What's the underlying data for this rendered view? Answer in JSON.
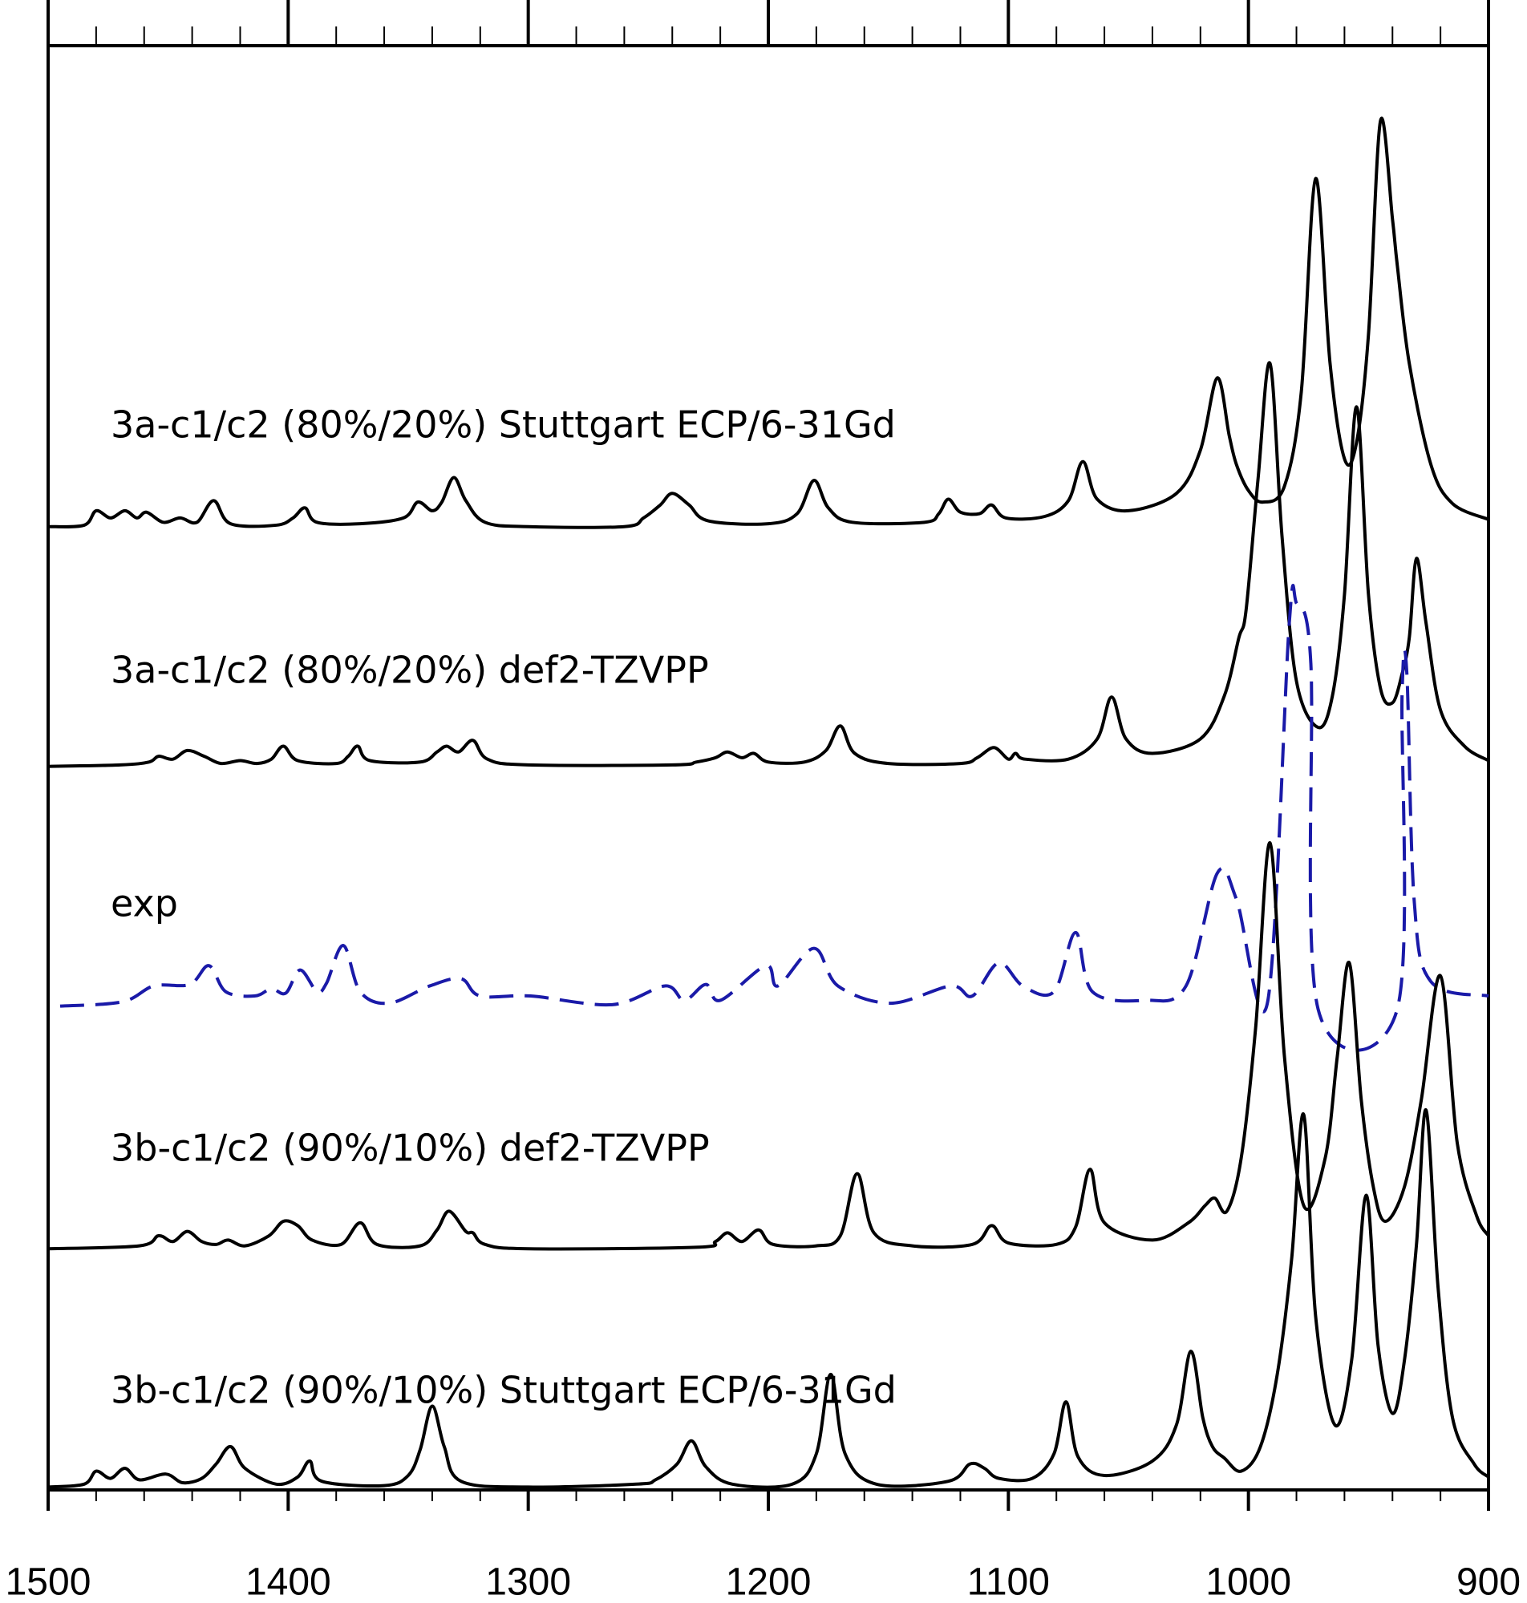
{
  "chart_data": {
    "type": "line",
    "xlim": [
      1500,
      900
    ],
    "ylim": [
      0,
      100
    ],
    "xticks": [
      1500,
      1400,
      1300,
      1200,
      1100,
      1000,
      900
    ],
    "xticks_minor": [
      1480,
      1460,
      1440,
      1420,
      1380,
      1360,
      1340,
      1320,
      1280,
      1260,
      1240,
      1220,
      1180,
      1160,
      1140,
      1120,
      1080,
      1060,
      1040,
      1020,
      980,
      960,
      940,
      920
    ],
    "series": [
      {
        "name": "3a-c1/c2 (80%/20%) Stuttgart ECP/6-31Gd",
        "color": "#000000",
        "line_style": "solid",
        "x": [
          1500,
          1485,
          1480,
          1474,
          1468,
          1463,
          1459,
          1452,
          1445,
          1438,
          1431,
          1424,
          1405,
          1398,
          1393,
          1388,
          1370,
          1352,
          1346,
          1340,
          1336,
          1331,
          1326,
          1318,
          1300,
          1260,
          1252,
          1245,
          1240,
          1233,
          1225,
          1200,
          1188,
          1181,
          1175,
          1165,
          1135,
          1129,
          1125,
          1120,
          1112,
          1107,
          1101,
          1085,
          1075,
          1069,
          1063,
          1050,
          1030,
          1020,
          1013,
          1008,
          1005,
          1000,
          994,
          985,
          978,
          972,
          966,
          960,
          955,
          950,
          945,
          940,
          938,
          933,
          924,
          915,
          900
        ],
        "values": [
          66.7,
          66.8,
          67.8,
          67.3,
          67.8,
          67.3,
          67.7,
          67.0,
          67.3,
          67.0,
          68.5,
          66.9,
          66.8,
          67.3,
          68.0,
          67.0,
          66.9,
          67.3,
          68.4,
          67.8,
          68.4,
          70.1,
          68.5,
          67.0,
          66.7,
          66.7,
          67.3,
          68.2,
          69.0,
          68.2,
          67.1,
          66.9,
          67.6,
          69.9,
          68.0,
          67.0,
          67.0,
          67.6,
          68.6,
          67.7,
          67.6,
          68.2,
          67.3,
          67.4,
          68.5,
          71.2,
          68.6,
          67.8,
          69.0,
          72.0,
          77.0,
          73.0,
          71.0,
          69.2,
          68.4,
          69.5,
          76.0,
          90.8,
          78.0,
          71.4,
          72.5,
          80.0,
          94.8,
          88.0,
          84.8,
          78.0,
          71.0,
          68.3,
          67.2
        ]
      },
      {
        "name": "3a-c1/c2 (80%/20%) def2-TZVPP",
        "color": "#000000",
        "line_style": "solid",
        "x": [
          1500,
          1470,
          1458,
          1454,
          1448,
          1442,
          1435,
          1428,
          1420,
          1413,
          1407,
          1402,
          1396,
          1380,
          1375,
          1371,
          1366,
          1345,
          1338,
          1334,
          1329,
          1323,
          1317,
          1300,
          1240,
          1230,
          1222,
          1217,
          1211,
          1206,
          1200,
          1185,
          1176,
          1170,
          1164,
          1150,
          1120,
          1113,
          1106,
          1100,
          1097,
          1093,
          1075,
          1063,
          1057,
          1051,
          1040,
          1020,
          1010,
          1004,
          1001,
          996,
          991,
          986,
          980,
          971,
          965,
          960,
          955,
          950,
          945,
          940,
          936,
          933,
          930,
          926,
          920,
          910,
          900
        ],
        "values": [
          50.1,
          50.2,
          50.4,
          50.8,
          50.6,
          51.2,
          50.8,
          50.3,
          50.5,
          50.3,
          50.6,
          51.5,
          50.5,
          50.3,
          50.8,
          51.5,
          50.5,
          50.4,
          51.1,
          51.5,
          51.1,
          51.9,
          50.6,
          50.2,
          50.2,
          50.4,
          50.7,
          51.1,
          50.7,
          51.0,
          50.4,
          50.4,
          51.2,
          52.9,
          51.0,
          50.3,
          50.3,
          50.7,
          51.4,
          50.6,
          51.0,
          50.6,
          50.6,
          52.0,
          54.9,
          52.0,
          51.0,
          52.0,
          55.0,
          59.0,
          60.9,
          70.0,
          78.0,
          66.0,
          56.0,
          52.8,
          55.0,
          62.0,
          75.0,
          62.0,
          55.5,
          54.5,
          56.5,
          59.0,
          64.5,
          60.0,
          54.0,
          51.5,
          50.5
        ]
      },
      {
        "name": "exp",
        "color": "#1a1aa8",
        "line_style": "dashed",
        "x": [
          1495,
          1469,
          1456,
          1441,
          1433,
          1426,
          1414,
          1407,
          1401,
          1395,
          1388,
          1384,
          1377,
          1370,
          1358,
          1341,
          1328,
          1320,
          1299,
          1265,
          1243,
          1235,
          1226,
          1220,
          1201,
          1196,
          1181,
          1171,
          1149,
          1124,
          1115,
          1104,
          1094,
          1081,
          1072,
          1065,
          1043,
          1026,
          1013,
          1005,
          992,
          983,
          980,
          974,
          971,
          938,
          936,
          934,
          931,
          924,
          900
        ],
        "values": [
          33.5,
          33.8,
          34.9,
          35.0,
          36.3,
          34.5,
          34.2,
          34.7,
          34.4,
          36.0,
          34.5,
          35.1,
          37.7,
          34.5,
          33.7,
          34.9,
          35.4,
          34.2,
          34.2,
          33.6,
          34.9,
          33.9,
          35.0,
          33.9,
          36.3,
          34.9,
          37.5,
          34.9,
          33.7,
          34.9,
          34.2,
          36.5,
          34.9,
          34.5,
          38.6,
          34.5,
          33.9,
          34.9,
          42.7,
          40.9,
          33.8,
          60.0,
          61.4,
          57.2,
          33.3,
          33.3,
          55.1,
          56.5,
          40.9,
          35.2,
          34.2
        ]
      },
      {
        "name": "3b-c1/c2 (90%/10%) def2-TZVPP",
        "color": "#000000",
        "line_style": "solid",
        "x": [
          1500,
          1462,
          1454,
          1448,
          1442,
          1436,
          1430,
          1425,
          1418,
          1408,
          1402,
          1396,
          1390,
          1378,
          1370,
          1363,
          1345,
          1338,
          1333,
          1326,
          1323,
          1318,
          1300,
          1230,
          1222,
          1217,
          1211,
          1204,
          1198,
          1180,
          1170,
          1163,
          1156,
          1140,
          1115,
          1107,
          1100,
          1080,
          1072,
          1066,
          1060,
          1040,
          1025,
          1018,
          1014,
          1009,
          1003,
          997,
          991,
          985,
          977,
          968,
          963,
          958,
          953,
          948,
          943,
          935,
          928,
          920,
          913,
          905,
          900
        ],
        "values": [
          16.7,
          16.9,
          17.6,
          17.2,
          17.9,
          17.2,
          17.0,
          17.3,
          16.9,
          17.6,
          18.6,
          18.3,
          17.3,
          17.0,
          18.5,
          17.0,
          16.9,
          18.0,
          19.3,
          17.9,
          17.8,
          17.0,
          16.7,
          16.8,
          17.2,
          17.8,
          17.2,
          18.0,
          17.0,
          16.9,
          17.6,
          21.9,
          17.8,
          16.9,
          17.0,
          18.3,
          17.1,
          17.0,
          18.2,
          22.2,
          18.5,
          17.3,
          18.5,
          19.7,
          20.2,
          19.3,
          23.0,
          32.0,
          44.8,
          30.0,
          19.7,
          23.0,
          30.0,
          36.5,
          27.0,
          21.0,
          18.6,
          21.0,
          27.0,
          35.6,
          24.0,
          19.0,
          17.6
        ]
      },
      {
        "name": "3b-c1/c2 (90%/10%) Stuttgart ECP/6-31Gd",
        "color": "#000000",
        "line_style": "solid",
        "x": [
          1500,
          1485,
          1480,
          1474,
          1468,
          1462,
          1451,
          1444,
          1436,
          1430,
          1424,
          1418,
          1405,
          1396,
          1391,
          1386,
          1360,
          1350,
          1345,
          1340,
          1335,
          1328,
          1300,
          1255,
          1247,
          1238,
          1232,
          1226,
          1215,
          1190,
          1180,
          1174,
          1168,
          1155,
          1125,
          1116,
          1110,
          1104,
          1090,
          1081,
          1076,
          1071,
          1060,
          1040,
          1030,
          1024,
          1019,
          1015,
          1010,
          1003,
          995,
          988,
          982,
          977,
          972,
          964,
          957,
          951,
          946,
          940,
          935,
          930,
          926,
          921,
          915,
          906,
          900
        ],
        "values": [
          0.2,
          0.4,
          1.3,
          0.8,
          1.5,
          0.7,
          1.1,
          0.5,
          0.8,
          1.8,
          3.0,
          1.5,
          0.4,
          0.9,
          2.0,
          0.6,
          0.3,
          1.0,
          2.8,
          5.8,
          3.0,
          0.6,
          0.2,
          0.4,
          0.7,
          1.8,
          3.4,
          1.6,
          0.4,
          0.4,
          2.5,
          8.0,
          2.5,
          0.4,
          0.6,
          1.8,
          1.5,
          0.8,
          0.8,
          2.5,
          6.1,
          2.3,
          1.0,
          2.0,
          4.5,
          9.6,
          5.0,
          3.0,
          2.2,
          1.3,
          3.0,
          8.0,
          16.0,
          26.0,
          12.0,
          4.5,
          9.0,
          20.4,
          10.0,
          5.3,
          9.0,
          17.0,
          26.3,
          14.0,
          5.0,
          1.8,
          0.9
        ]
      }
    ]
  }
}
